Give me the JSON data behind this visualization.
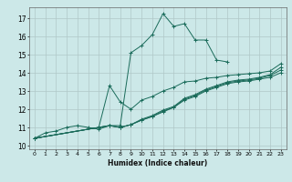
{
  "title": "",
  "xlabel": "Humidex (Indice chaleur)",
  "bg_color": "#cce8e8",
  "grid_color": "#b0c8c8",
  "line_color": "#1a6b5a",
  "xlim": [
    -0.5,
    23.5
  ],
  "ylim": [
    9.8,
    17.6
  ],
  "yticks": [
    10,
    11,
    12,
    13,
    14,
    15,
    16,
    17
  ],
  "xticks": [
    0,
    1,
    2,
    3,
    4,
    5,
    6,
    7,
    8,
    9,
    10,
    11,
    12,
    13,
    14,
    15,
    16,
    17,
    18,
    19,
    20,
    21,
    22,
    23
  ],
  "series": [
    {
      "x": [
        0,
        1,
        2,
        3,
        4,
        5,
        6,
        7,
        8,
        9,
        10,
        11,
        12,
        13,
        14,
        15,
        16,
        17,
        18
      ],
      "y": [
        10.4,
        10.7,
        10.8,
        11.0,
        11.1,
        11.0,
        10.9,
        11.1,
        11.1,
        15.1,
        15.5,
        16.1,
        17.25,
        16.55,
        16.7,
        15.8,
        15.8,
        14.7,
        14.6
      ]
    },
    {
      "x": [
        0,
        6,
        7,
        8,
        9,
        10,
        11,
        12,
        13,
        14,
        15,
        16,
        17,
        18,
        19,
        20,
        21,
        22,
        23
      ],
      "y": [
        10.4,
        11.0,
        13.3,
        12.4,
        12.0,
        12.5,
        12.7,
        13.0,
        13.2,
        13.5,
        13.55,
        13.7,
        13.75,
        13.85,
        13.9,
        13.95,
        14.0,
        14.1,
        14.5
      ]
    },
    {
      "x": [
        0,
        6,
        7,
        8,
        9,
        10,
        11,
        12,
        13,
        14,
        15,
        16,
        17,
        18,
        19,
        20,
        21,
        22,
        23
      ],
      "y": [
        10.4,
        11.0,
        11.1,
        11.0,
        11.15,
        11.4,
        11.6,
        11.85,
        12.1,
        12.5,
        12.7,
        13.0,
        13.2,
        13.4,
        13.5,
        13.55,
        13.65,
        13.75,
        14.0
      ]
    },
    {
      "x": [
        0,
        6,
        7,
        8,
        9,
        10,
        11,
        12,
        13,
        14,
        15,
        16,
        17,
        18,
        19,
        20,
        21,
        22,
        23
      ],
      "y": [
        10.4,
        11.0,
        11.1,
        11.0,
        11.15,
        11.4,
        11.6,
        11.9,
        12.1,
        12.55,
        12.75,
        13.05,
        13.25,
        13.45,
        13.55,
        13.6,
        13.7,
        13.85,
        14.15
      ]
    },
    {
      "x": [
        0,
        6,
        7,
        8,
        9,
        10,
        11,
        12,
        13,
        14,
        15,
        16,
        17,
        18,
        19,
        20,
        21,
        22,
        23
      ],
      "y": [
        10.4,
        11.0,
        11.1,
        11.0,
        11.15,
        11.45,
        11.65,
        11.95,
        12.15,
        12.6,
        12.8,
        13.1,
        13.3,
        13.5,
        13.6,
        13.65,
        13.75,
        13.9,
        14.3
      ]
    }
  ]
}
